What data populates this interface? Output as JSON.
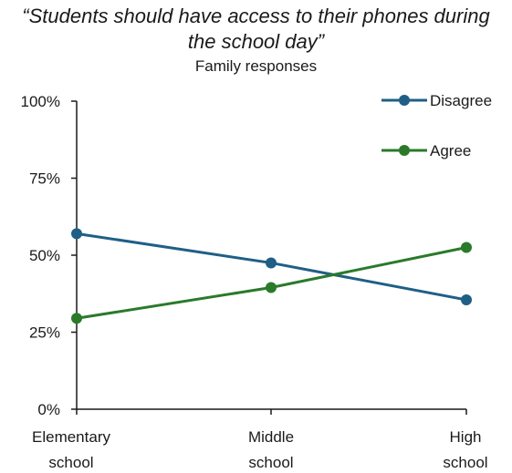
{
  "chart_data": {
    "type": "line",
    "title": "“Students should have access to their phones during the school day”",
    "subtitle": "Family responses",
    "xlabel": "",
    "ylabel": "",
    "categories": [
      "Elementary school",
      "Middle school",
      "High school"
    ],
    "category_lines": [
      [
        "Elementary",
        "school"
      ],
      [
        "Middle",
        "school"
      ],
      [
        "High",
        "school"
      ]
    ],
    "ylim": [
      0,
      100
    ],
    "yticks": [
      "0%",
      "25%",
      "50%",
      "75%",
      "100%"
    ],
    "ytick_values": [
      0,
      25,
      50,
      75,
      100
    ],
    "grid": false,
    "legend_position": "top-right",
    "series": [
      {
        "name": "Disagree",
        "color": "#1f5f86",
        "values": [
          57,
          47.5,
          35.5
        ]
      },
      {
        "name": "Agree",
        "color": "#2a7a2a",
        "values": [
          29.5,
          39.5,
          52.5
        ]
      }
    ]
  }
}
